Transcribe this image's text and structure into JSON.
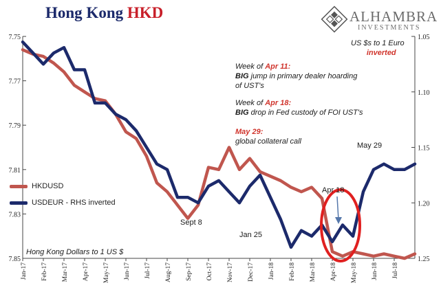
{
  "title": {
    "part1": "Hong Kong",
    "part2": "HKD"
  },
  "logo": {
    "name": "ALHAMBRA",
    "sub": "INVESTMENTS"
  },
  "annotations": {
    "rhs_note_line1": "US $s to 1 Euro",
    "rhs_note_line2": "inverted",
    "apr11_prefix": "Week of ",
    "apr11_date": "Apr 11:",
    "apr11_bold": "BIG",
    "apr11_text1": " jump in primary dealer hoarding",
    "apr11_text2": "of UST's",
    "apr18_prefix": "Week of ",
    "apr18_date": "Apr 18:",
    "apr18_bold": "BIG",
    "apr18_text": " drop in Fed custody of FOI UST's",
    "may29_date": "May 29:",
    "may29_text": "global collateral call",
    "label_may29": "May 29",
    "label_apr18": "Apr 18",
    "label_sept8": "Sept 8",
    "label_jan25": "Jan 25",
    "bottom_note": "Hong Kong Dollars to 1 US $"
  },
  "colors": {
    "hkd": "#c0564e",
    "usdeur": "#1c2a6b",
    "circle": "#e02020",
    "annotation_red": "#d0342c"
  },
  "chart_data": {
    "type": "line",
    "x_tick_labels": [
      "Jan-17",
      "Feb-17",
      "Mar-17",
      "Apr-17",
      "May-17",
      "Jun-17",
      "Jul-17",
      "Aug-17",
      "Sep-17",
      "Oct-17",
      "Nov-17",
      "Dec-17",
      "Jan-18",
      "Feb-18",
      "Mar-18",
      "Apr-18",
      "May-18",
      "Jun-18",
      "Jul-18"
    ],
    "x_range_months": [
      0,
      19
    ],
    "left_axis": {
      "ticks": [
        "7.75",
        "7.77",
        "7.79",
        "7.81",
        "7.83",
        "7.85"
      ],
      "range": [
        7.75,
        7.85
      ],
      "inverted": true
    },
    "right_axis": {
      "ticks": [
        "1.05",
        "1.10",
        "1.15",
        "1.20",
        "1.25"
      ],
      "range": [
        1.05,
        1.25
      ],
      "inverted": true
    },
    "series": [
      {
        "name": "HKDUSD",
        "axis": "left",
        "x": [
          0,
          0.5,
          1,
          1.5,
          2,
          2.5,
          3,
          3.5,
          4,
          4.5,
          5,
          5.5,
          6,
          6.5,
          7,
          7.5,
          8,
          8.5,
          9,
          9.5,
          10,
          10.5,
          11,
          11.5,
          12,
          12.5,
          13,
          13.5,
          14,
          14.5,
          15,
          15.5,
          16,
          16.5,
          17,
          17.5,
          18,
          18.5,
          19
        ],
        "values": [
          7.756,
          7.758,
          7.759,
          7.762,
          7.766,
          7.772,
          7.775,
          7.778,
          7.779,
          7.785,
          7.793,
          7.796,
          7.804,
          7.816,
          7.82,
          7.826,
          7.832,
          7.826,
          7.809,
          7.81,
          7.8,
          7.81,
          7.805,
          7.811,
          7.813,
          7.815,
          7.818,
          7.82,
          7.818,
          7.823,
          7.847,
          7.849,
          7.847,
          7.848,
          7.849,
          7.848,
          7.849,
          7.85,
          7.848
        ]
      },
      {
        "name": "USDEUR - RHS inverted",
        "axis": "right",
        "x": [
          0,
          0.5,
          1,
          1.5,
          2,
          2.5,
          3,
          3.5,
          4,
          4.5,
          5,
          5.5,
          6,
          6.5,
          7,
          7.5,
          8,
          8.5,
          9,
          9.5,
          10,
          10.5,
          11,
          11.5,
          12,
          12.5,
          13,
          13.5,
          14,
          14.5,
          15,
          15.5,
          16,
          16.5,
          17,
          17.5,
          18,
          18.5,
          19
        ],
        "values": [
          1.055,
          1.065,
          1.075,
          1.065,
          1.06,
          1.08,
          1.08,
          1.11,
          1.11,
          1.12,
          1.125,
          1.135,
          1.15,
          1.165,
          1.17,
          1.195,
          1.195,
          1.2,
          1.185,
          1.18,
          1.19,
          1.2,
          1.185,
          1.175,
          1.195,
          1.215,
          1.24,
          1.225,
          1.23,
          1.22,
          1.235,
          1.22,
          1.23,
          1.19,
          1.17,
          1.165,
          1.17,
          1.17,
          1.165
        ]
      }
    ],
    "highlight": {
      "type": "ellipse",
      "x_center": 15.4,
      "note": "Apr 18"
    }
  }
}
